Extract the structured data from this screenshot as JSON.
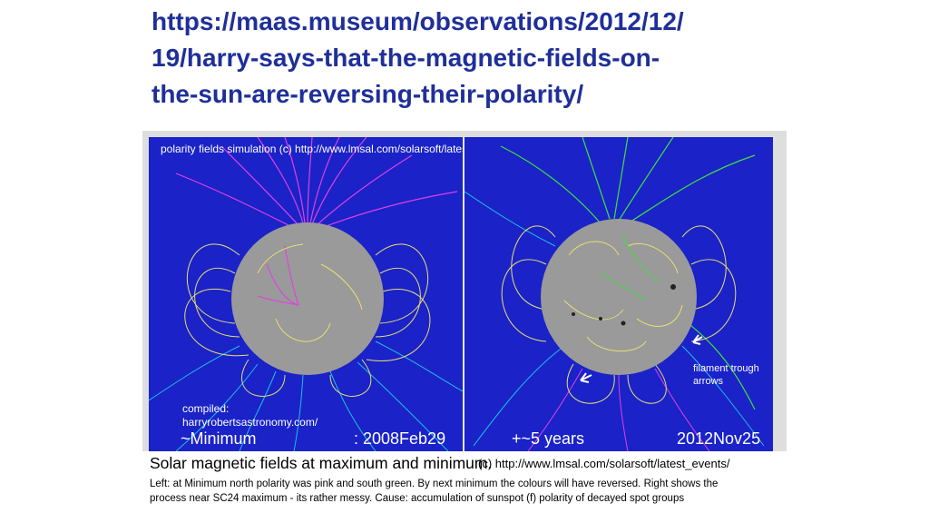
{
  "slide": {
    "title_lines": [
      "https://maas.museum/observations/2012/12/",
      "19/harry-says-that-the-magnetic-fields-on-",
      "the-sun-are-reversing-their-polarity/"
    ]
  },
  "figure": {
    "header": "polarity fields simulation (c) http://www.lmsal.com/solarsoft/latest_events/",
    "left_panel": {
      "compiled_label": "compiled:",
      "compiled_source": "harryrobertsastronomy.com/",
      "phase": "~Minimum",
      "date": ": 2008Feb29"
    },
    "right_panel": {
      "annotation": "filament trough arrows",
      "phase": "+~5 years",
      "date": "2012Nov25"
    },
    "caption_title": "Solar magnetic fields at maximum and minimum.",
    "caption_credit": "(c) http://www.lmsal.com/solarsoft/latest_events/",
    "note_line1": "Left: at Minimum north polarity was pink and south green. By next minimum the colours will have reversed. Right shows the",
    "note_line2": "process near SC24 maximum - its rather messy.    Cause: accumulation of sunspot (f) polarity of decayed spot groups",
    "colors": {
      "background": "#1a22c8",
      "sun": "#9a9a9a",
      "north_polarity": "#e040e0",
      "south_polarity": "#40e040",
      "closed_loops": "#e8e070"
    }
  }
}
